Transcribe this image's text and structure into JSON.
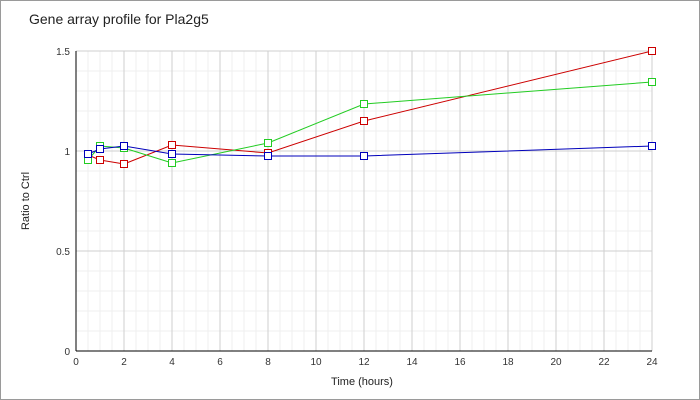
{
  "chart_data": {
    "type": "line",
    "title": "Gene array profile for Pla2g5",
    "xlabel": "Time (hours)",
    "ylabel": "Ratio to Ctrl",
    "xlim": [
      0,
      24
    ],
    "ylim": [
      0,
      1.5
    ],
    "x_ticks": [
      "0",
      "2",
      "4",
      "6",
      "8",
      "10",
      "12",
      "14",
      "16",
      "18",
      "20",
      "22",
      "24"
    ],
    "y_ticks": [
      "0",
      "0.5",
      "1",
      "1.5"
    ],
    "grid": true,
    "legend": "none",
    "series": [
      {
        "color": "#cc0000",
        "x": [
          0.5,
          1,
          2,
          4,
          8,
          12,
          24
        ],
        "y": [
          0.98,
          0.955,
          0.935,
          1.03,
          0.99,
          1.15,
          1.5
        ]
      },
      {
        "color": "#22cc22",
        "x": [
          0.5,
          1,
          2,
          4,
          8,
          12,
          24
        ],
        "y": [
          0.955,
          1.025,
          1.015,
          0.94,
          1.04,
          1.235,
          1.345
        ]
      },
      {
        "color": "#0000bb",
        "x": [
          0.5,
          1,
          2,
          4,
          8,
          12,
          24
        ],
        "y": [
          0.985,
          1.01,
          1.025,
          0.985,
          0.975,
          0.975,
          1.025
        ]
      }
    ]
  }
}
